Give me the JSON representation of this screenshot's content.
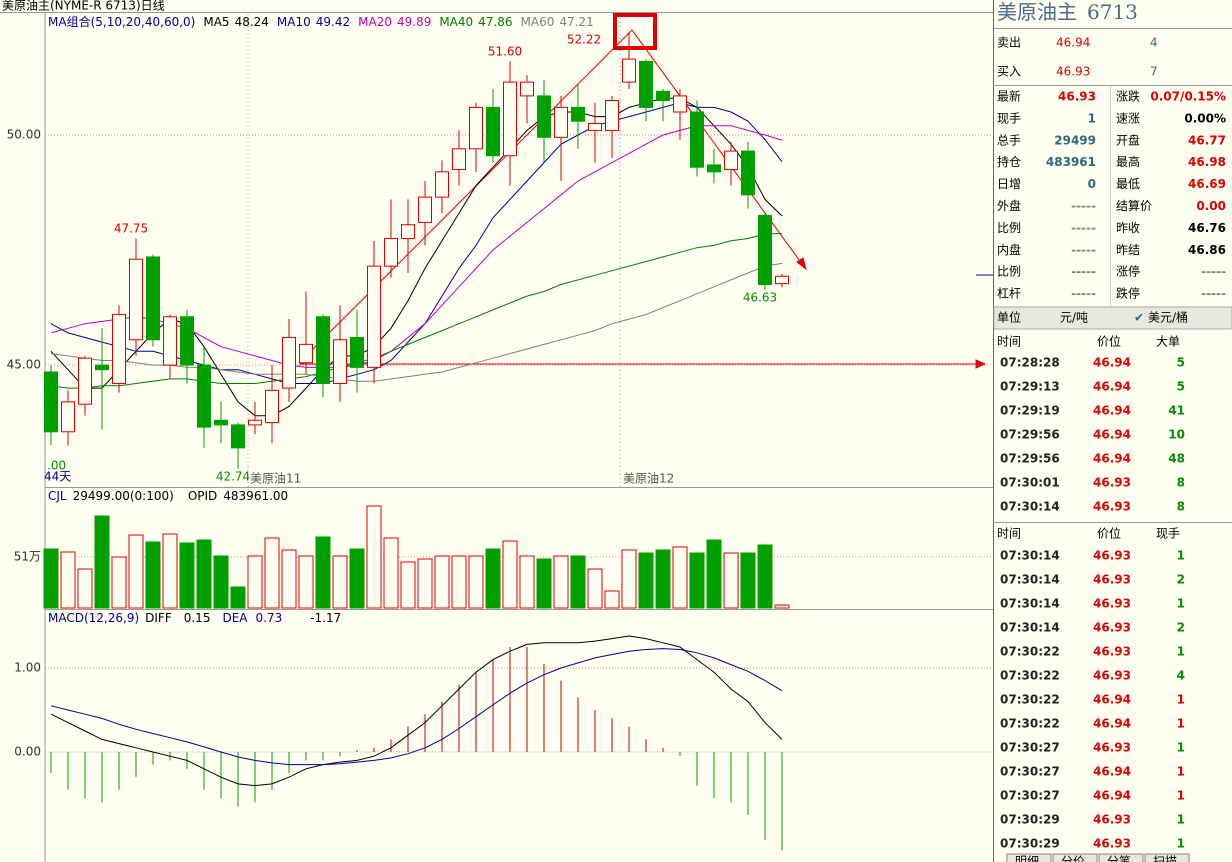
{
  "window_title": "美原油主(NYME-R 6713)日线",
  "ma_legend": {
    "title": "MA组合(5,10,20,40,60,0)"
  },
  "price_pane": {
    "ylim": [
      42.35,
      52.63
    ],
    "yticks": [
      {
        "value": 45,
        "label": "45.00"
      },
      {
        "value": 50,
        "label": "50.00"
      }
    ],
    "up_color": "#e00000",
    "down_color": "#00a000",
    "candles": [
      [
        44.85,
        45.0,
        43.26,
        43.55
      ],
      [
        43.55,
        44.45,
        43.25,
        44.2
      ],
      [
        44.15,
        45.2,
        43.9,
        45.15
      ],
      [
        45.0,
        45.8,
        43.6,
        44.9
      ],
      [
        44.6,
        46.3,
        44.4,
        46.1
      ],
      [
        45.55,
        47.75,
        45.2,
        47.3
      ],
      [
        47.35,
        47.4,
        45.4,
        45.55
      ],
      [
        45.0,
        46.1,
        44.7,
        46.05
      ],
      [
        46.05,
        46.2,
        44.6,
        45.0
      ],
      [
        45.0,
        45.4,
        43.2,
        43.65
      ],
      [
        43.8,
        44.2,
        43.3,
        43.7
      ],
      [
        43.7,
        43.75,
        42.74,
        43.2
      ],
      [
        43.7,
        44.2,
        43.5,
        43.8
      ],
      [
        43.75,
        45.0,
        43.3,
        44.45
      ],
      [
        44.5,
        46.0,
        44.2,
        45.6
      ],
      [
        45.05,
        46.6,
        44.8,
        45.45
      ],
      [
        46.05,
        46.1,
        44.3,
        44.6
      ],
      [
        44.6,
        46.3,
        44.2,
        45.55
      ],
      [
        45.6,
        46.2,
        44.4,
        44.95
      ],
      [
        44.95,
        47.7,
        44.6,
        47.15
      ],
      [
        47.15,
        48.6,
        46.9,
        47.75
      ],
      [
        47.75,
        48.6,
        47.0,
        48.05
      ],
      [
        48.1,
        49.0,
        47.6,
        48.65
      ],
      [
        48.65,
        49.45,
        48.3,
        49.2
      ],
      [
        49.25,
        50.1,
        48.9,
        49.7
      ],
      [
        49.7,
        50.7,
        49.2,
        50.6
      ],
      [
        50.6,
        51.0,
        49.4,
        49.55
      ],
      [
        49.55,
        51.6,
        48.9,
        51.15
      ],
      [
        50.85,
        51.3,
        50.25,
        51.15
      ],
      [
        50.85,
        51.2,
        49.4,
        49.95
      ],
      [
        49.95,
        50.85,
        49.0,
        50.6
      ],
      [
        50.6,
        51.1,
        49.7,
        50.3
      ],
      [
        50.1,
        50.7,
        49.4,
        50.25
      ],
      [
        50.1,
        50.85,
        49.5,
        50.75
      ],
      [
        51.15,
        52.22,
        51.0,
        51.65
      ],
      [
        51.6,
        51.65,
        50.3,
        50.6
      ],
      [
        50.95,
        51.0,
        50.3,
        50.75
      ],
      [
        50.5,
        51.0,
        49.9,
        50.85
      ],
      [
        50.5,
        50.75,
        49.1,
        49.3
      ],
      [
        49.35,
        49.7,
        48.95,
        49.2
      ],
      [
        49.25,
        49.85,
        48.9,
        49.65
      ],
      [
        49.65,
        49.85,
        48.4,
        48.7
      ],
      [
        48.25,
        48.3,
        46.63,
        46.75
      ],
      [
        46.77,
        46.98,
        46.69,
        46.93
      ]
    ],
    "ma": [
      {
        "name": "MA5",
        "value": 48.24,
        "color": "#000000",
        "values": [
          45.3,
          44.9,
          44.5,
          44.5,
          44.9,
          45.3,
          45.7,
          46.0,
          45.9,
          45.4,
          44.8,
          44.2,
          43.9,
          43.9,
          44.1,
          44.5,
          44.9,
          45.2,
          45.2,
          45.4,
          45.8,
          46.4,
          47.1,
          47.7,
          48.3,
          48.9,
          49.3,
          49.7,
          50.1,
          50.4,
          50.5,
          50.5,
          50.4,
          50.4,
          50.6,
          50.7,
          50.8,
          50.8,
          50.6,
          50.2,
          49.8,
          49.3,
          48.6,
          48.24
        ]
      },
      {
        "name": "MA10",
        "value": 49.42,
        "color": "#0000a0",
        "values": [
          45.9,
          45.7,
          45.6,
          45.5,
          45.4,
          45.3,
          45.3,
          45.2,
          45.1,
          45.0,
          44.9,
          44.9,
          44.8,
          44.7,
          44.6,
          44.6,
          44.6,
          44.7,
          44.8,
          44.9,
          45.1,
          45.5,
          45.9,
          46.5,
          47.1,
          47.6,
          48.2,
          48.6,
          49.0,
          49.4,
          49.8,
          50.0,
          50.2,
          50.3,
          50.4,
          50.5,
          50.6,
          50.7,
          50.6,
          50.6,
          50.5,
          50.3,
          49.9,
          49.42
        ]
      },
      {
        "name": "MA20",
        "value": 49.89,
        "color": "#c000c0",
        "values": [
          45.7,
          45.8,
          45.9,
          45.95,
          46.0,
          46.05,
          46.0,
          45.9,
          45.8,
          45.6,
          45.4,
          45.3,
          45.2,
          45.1,
          45.0,
          44.95,
          44.95,
          44.95,
          45.0,
          45.1,
          45.3,
          45.6,
          45.9,
          46.3,
          46.7,
          47.1,
          47.5,
          47.8,
          48.1,
          48.4,
          48.7,
          49.0,
          49.2,
          49.4,
          49.6,
          49.8,
          50.0,
          50.1,
          50.2,
          50.2,
          50.2,
          50.1,
          50.0,
          49.89
        ]
      },
      {
        "name": "MA40",
        "value": 47.86,
        "color": "#008000",
        "values": [
          44.55,
          44.5,
          44.5,
          44.55,
          44.55,
          44.6,
          44.65,
          44.7,
          44.7,
          44.65,
          44.6,
          44.6,
          44.6,
          44.65,
          44.7,
          44.75,
          44.85,
          44.95,
          45.05,
          45.15,
          45.3,
          45.45,
          45.6,
          45.75,
          45.9,
          46.05,
          46.2,
          46.35,
          46.5,
          46.6,
          46.75,
          46.85,
          46.95,
          47.05,
          47.15,
          47.25,
          47.35,
          47.45,
          47.55,
          47.6,
          47.7,
          47.75,
          47.85,
          47.86
        ]
      },
      {
        "name": "MA60",
        "value": 47.21,
        "color": "#808080",
        "values": [
          45.25,
          45.2,
          45.15,
          45.1,
          45.1,
          45.05,
          45.0,
          45.0,
          44.95,
          44.95,
          44.9,
          44.85,
          44.8,
          44.8,
          44.8,
          44.8,
          44.75,
          44.7,
          44.65,
          44.65,
          44.7,
          44.75,
          44.8,
          44.85,
          44.95,
          45.05,
          45.15,
          45.25,
          45.35,
          45.45,
          45.55,
          45.65,
          45.75,
          45.9,
          46.0,
          46.1,
          46.25,
          46.4,
          46.55,
          46.7,
          46.85,
          47.0,
          47.15,
          47.21
        ]
      }
    ],
    "high_low_labels": [
      "51.60",
      "52.22",
      "47.75",
      "42.74",
      "46.63"
    ],
    "contract_labels": [
      "美原油11",
      "美原油12"
    ],
    "days_label": "44天",
    "cut_label": ".00"
  },
  "volume_pane": {
    "name": "CJL",
    "value_text": "29499.00(0:100)",
    "opid_name": "OPID",
    "opid_text": "483961.00",
    "ylim": [
      0,
      1200000
    ],
    "yticks": [
      {
        "value": 510000,
        "label": "51万"
      }
    ],
    "values": [
      590000,
      560000,
      390000,
      920000,
      510000,
      730000,
      660000,
      740000,
      650000,
      680000,
      520000,
      210000,
      520000,
      700000,
      580000,
      520000,
      710000,
      520000,
      590000,
      1020000,
      700000,
      460000,
      490000,
      520000,
      520000,
      520000,
      590000,
      670000,
      520000,
      490000,
      520000,
      520000,
      390000,
      170000,
      580000,
      550000,
      580000,
      610000,
      550000,
      680000,
      550000,
      550000,
      630000,
      29499
    ]
  },
  "macd_pane": {
    "name": "MACD(12,26,9)",
    "diff_name": "DIFF",
    "diff_value": 0.15,
    "dea_name": "DEA",
    "dea_value": 0.73,
    "macd_value": -1.17,
    "ylim": [
      -1.262,
      1.69
    ],
    "yticks": [
      {
        "value": 1,
        "label": "1.00"
      },
      {
        "value": 0,
        "label": "0.00"
      }
    ],
    "bars": [
      -0.25,
      -0.45,
      -0.55,
      -0.6,
      -0.45,
      -0.3,
      -0.15,
      -0.1,
      -0.2,
      -0.45,
      -0.55,
      -0.65,
      -0.6,
      -0.45,
      -0.25,
      -0.1,
      -0.1,
      -0.05,
      0.02,
      0.05,
      0.15,
      0.3,
      0.45,
      0.6,
      0.8,
      0.95,
      1.1,
      1.25,
      1.25,
      1.05,
      0.85,
      0.65,
      0.5,
      0.4,
      0.3,
      0.15,
      0.05,
      -0.05,
      -0.4,
      -0.55,
      -0.6,
      -0.75,
      -1.05,
      -1.17
    ],
    "diff": [
      0.45,
      0.35,
      0.25,
      0.15,
      0.1,
      0.05,
      0.0,
      -0.05,
      -0.1,
      -0.2,
      -0.3,
      -0.38,
      -0.4,
      -0.38,
      -0.3,
      -0.2,
      -0.15,
      -0.12,
      -0.1,
      -0.05,
      0.05,
      0.2,
      0.35,
      0.55,
      0.75,
      0.95,
      1.1,
      1.2,
      1.28,
      1.3,
      1.3,
      1.3,
      1.32,
      1.35,
      1.38,
      1.35,
      1.3,
      1.25,
      1.1,
      0.95,
      0.75,
      0.6,
      0.35,
      0.15
    ],
    "dea": [
      0.55,
      0.5,
      0.45,
      0.4,
      0.33,
      0.27,
      0.22,
      0.17,
      0.12,
      0.06,
      0.0,
      -0.06,
      -0.1,
      -0.13,
      -0.15,
      -0.15,
      -0.15,
      -0.14,
      -0.12,
      -0.1,
      -0.07,
      -0.02,
      0.05,
      0.15,
      0.28,
      0.42,
      0.56,
      0.7,
      0.82,
      0.92,
      1.0,
      1.06,
      1.12,
      1.16,
      1.2,
      1.22,
      1.23,
      1.22,
      1.18,
      1.12,
      1.04,
      0.96,
      0.85,
      0.73
    ]
  },
  "quote": {
    "name": "美原油主",
    "code": "6713",
    "orders": [
      {
        "label": "卖出",
        "price": "46.94",
        "volume": 4
      },
      {
        "label": "买入",
        "price": "46.93",
        "volume": 7
      }
    ],
    "stats_left": [
      {
        "label": "最新",
        "value": "46.93",
        "color": "#e00000"
      },
      {
        "label": "现手",
        "value": "1",
        "color": "#2b6a80"
      },
      {
        "label": "总手",
        "value": "29499",
        "color": "#2b6a80"
      },
      {
        "label": "持仓",
        "value": "483961",
        "color": "#2b6a80"
      },
      {
        "label": "日增",
        "value": "0",
        "color": "#2b6a80"
      },
      {
        "label": "外盘",
        "value": "-----",
        "color": "#808080"
      },
      {
        "label": "比例",
        "value": "-----",
        "color": "#808080"
      },
      {
        "label": "内盘",
        "value": "-----",
        "color": "#808080"
      },
      {
        "label": "比例",
        "value": "-----",
        "color": "#808080"
      },
      {
        "label": "杠杆",
        "value": "-----",
        "color": "#808080"
      }
    ],
    "stats_right": [
      {
        "label": "涨跌",
        "value": "0.07/0.15%",
        "color": "#e00000"
      },
      {
        "label": "速涨",
        "value": "0.00%",
        "color": "#000000"
      },
      {
        "label": "开盘",
        "value": "46.77",
        "color": "#e00000"
      },
      {
        "label": "最高",
        "value": "46.98",
        "color": "#e00000"
      },
      {
        "label": "最低",
        "value": "46.69",
        "color": "#e00000"
      },
      {
        "label": "结算价",
        "value": "0.00",
        "color": "#e00000"
      },
      {
        "label": "昨收",
        "value": "46.76",
        "color": "#000000"
      },
      {
        "label": "昨结",
        "value": "46.86",
        "color": "#000000"
      },
      {
        "label": "涨停",
        "value": "-----",
        "color": "#808080"
      },
      {
        "label": "跌停",
        "value": "-----",
        "color": "#808080"
      }
    ],
    "unit": {
      "label": "单位",
      "option1": "元/吨",
      "option2": "美元/桶"
    }
  },
  "big_orders": {
    "headers": [
      "时间",
      "价位",
      "大单"
    ],
    "rows": [
      [
        "07:28:28",
        "46.94",
        5
      ],
      [
        "07:29:13",
        "46.94",
        5
      ],
      [
        "07:29:19",
        "46.94",
        41
      ],
      [
        "07:29:56",
        "46.94",
        10
      ],
      [
        "07:29:56",
        "46.94",
        48
      ],
      [
        "07:30:01",
        "46.93",
        8
      ],
      [
        "07:30:14",
        "46.93",
        8
      ]
    ],
    "qty_colors": [
      "#009000",
      "#009000",
      "#009000",
      "#009000",
      "#009000",
      "#009000",
      "#009000"
    ]
  },
  "ticks": {
    "headers": [
      "时间",
      "价位",
      "现手"
    ],
    "rows": [
      [
        "07:30:14",
        "46.93",
        1
      ],
      [
        "07:30:14",
        "46.93",
        2
      ],
      [
        "07:30:14",
        "46.93",
        1
      ],
      [
        "07:30:14",
        "46.93",
        2
      ],
      [
        "07:30:22",
        "46.93",
        1
      ],
      [
        "07:30:22",
        "46.93",
        4
      ],
      [
        "07:30:22",
        "46.94",
        1
      ],
      [
        "07:30:22",
        "46.94",
        1
      ],
      [
        "07:30:27",
        "46.93",
        1
      ],
      [
        "07:30:27",
        "46.94",
        1
      ],
      [
        "07:30:27",
        "46.94",
        1
      ],
      [
        "07:30:29",
        "46.93",
        1
      ],
      [
        "07:30:29",
        "46.93",
        1
      ]
    ],
    "qty_colors": [
      "#009000",
      "#009000",
      "#009000",
      "#009000",
      "#009000",
      "#009000",
      "#e00000",
      "#e00000",
      "#009000",
      "#e00000",
      "#e00000",
      "#009000",
      "#009000"
    ]
  },
  "tabs": [
    "明细",
    "分价",
    "分笔",
    "扫描"
  ]
}
